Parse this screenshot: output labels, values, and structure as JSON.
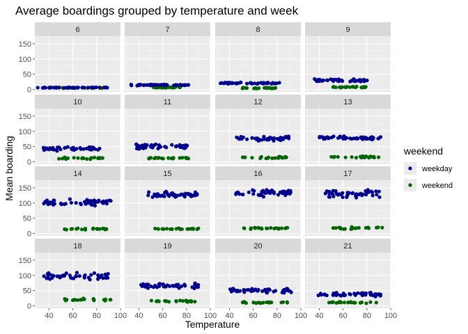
{
  "chart_data": {
    "type": "scatter",
    "title": "Average boardings grouped by temperature and week",
    "xlabel": "Temperature",
    "ylabel": "Mean boarding",
    "xlim": [
      28,
      100
    ],
    "ylim": [
      -8,
      175
    ],
    "x_ticks": [
      40,
      60,
      80,
      100
    ],
    "x_tick_labels": [
      "40",
      "60",
      "80",
      "100"
    ],
    "y_ticks": [
      0,
      50,
      100,
      150
    ],
    "y_tick_labels": [
      "0",
      "50",
      "100",
      "150"
    ],
    "facet_columns": 4,
    "grid": true,
    "legend": {
      "title": "weekend",
      "position": "right",
      "items": [
        {
          "label": "weekday",
          "color": "#00008B"
        },
        {
          "label": "weekend",
          "color": "#006400"
        }
      ]
    },
    "facets": [
      {
        "label": "6",
        "weekday": {
          "x": [
            30,
            90
          ],
          "y": [
            5,
            7
          ]
        },
        "weekend": {
          "x": [
            45,
            85
          ],
          "y": [
            4,
            6
          ]
        }
      },
      {
        "label": "7",
        "weekday": {
          "x": [
            32,
            82
          ],
          "y": [
            12,
            17
          ]
        },
        "weekend": {
          "x": [
            50,
            75
          ],
          "y": [
            5,
            8
          ]
        }
      },
      {
        "label": "8",
        "weekday": {
          "x": [
            30,
            82
          ],
          "y": [
            18,
            24
          ]
        },
        "weekend": {
          "x": [
            50,
            80
          ],
          "y": [
            3,
            6
          ]
        }
      },
      {
        "label": "9",
        "weekday": {
          "x": [
            35,
            82
          ],
          "y": [
            25,
            35
          ]
        },
        "weekend": {
          "x": [
            50,
            80
          ],
          "y": [
            5,
            10
          ]
        }
      },
      {
        "label": "10",
        "weekday": {
          "x": [
            35,
            85
          ],
          "y": [
            35,
            50
          ]
        },
        "weekend": {
          "x": [
            48,
            85
          ],
          "y": [
            8,
            15
          ]
        }
      },
      {
        "label": "11",
        "weekday": {
          "x": [
            37,
            82
          ],
          "y": [
            42,
            60
          ]
        },
        "weekend": {
          "x": [
            48,
            82
          ],
          "y": [
            10,
            15
          ]
        }
      },
      {
        "label": "12",
        "weekday": {
          "x": [
            45,
            90
          ],
          "y": [
            68,
            85
          ]
        },
        "weekend": {
          "x": [
            50,
            90
          ],
          "y": [
            10,
            18
          ]
        }
      },
      {
        "label": "13",
        "weekday": {
          "x": [
            40,
            92
          ],
          "y": [
            72,
            85
          ]
        },
        "weekend": {
          "x": [
            50,
            90
          ],
          "y": [
            12,
            20
          ]
        }
      },
      {
        "label": "14",
        "weekday": {
          "x": [
            35,
            92
          ],
          "y": [
            90,
            115
          ]
        },
        "weekend": {
          "x": [
            50,
            92
          ],
          "y": [
            12,
            18
          ]
        }
      },
      {
        "label": "15",
        "weekday": {
          "x": [
            45,
            92
          ],
          "y": [
            115,
            140
          ]
        },
        "weekend": {
          "x": [
            50,
            90
          ],
          "y": [
            12,
            18
          ]
        }
      },
      {
        "label": "16",
        "weekday": {
          "x": [
            45,
            92
          ],
          "y": [
            120,
            145
          ]
        },
        "weekend": {
          "x": [
            50,
            92
          ],
          "y": [
            14,
            20
          ]
        }
      },
      {
        "label": "17",
        "weekday": {
          "x": [
            45,
            92
          ],
          "y": [
            115,
            145
          ]
        },
        "weekend": {
          "x": [
            50,
            95
          ],
          "y": [
            14,
            22
          ]
        }
      },
      {
        "label": "18",
        "weekday": {
          "x": [
            35,
            92
          ],
          "y": [
            85,
            110
          ]
        },
        "weekend": {
          "x": [
            50,
            92
          ],
          "y": [
            15,
            25
          ]
        }
      },
      {
        "label": "19",
        "weekday": {
          "x": [
            40,
            90
          ],
          "y": [
            55,
            75
          ]
        },
        "weekend": {
          "x": [
            50,
            90
          ],
          "y": [
            12,
            18
          ]
        }
      },
      {
        "label": "20",
        "weekday": {
          "x": [
            40,
            92
          ],
          "y": [
            40,
            60
          ]
        },
        "weekend": {
          "x": [
            50,
            90
          ],
          "y": [
            8,
            14
          ]
        }
      },
      {
        "label": "21",
        "weekday": {
          "x": [
            38,
            92
          ],
          "y": [
            30,
            45
          ]
        },
        "weekend": {
          "x": [
            48,
            90
          ],
          "y": [
            8,
            14
          ]
        }
      }
    ]
  }
}
